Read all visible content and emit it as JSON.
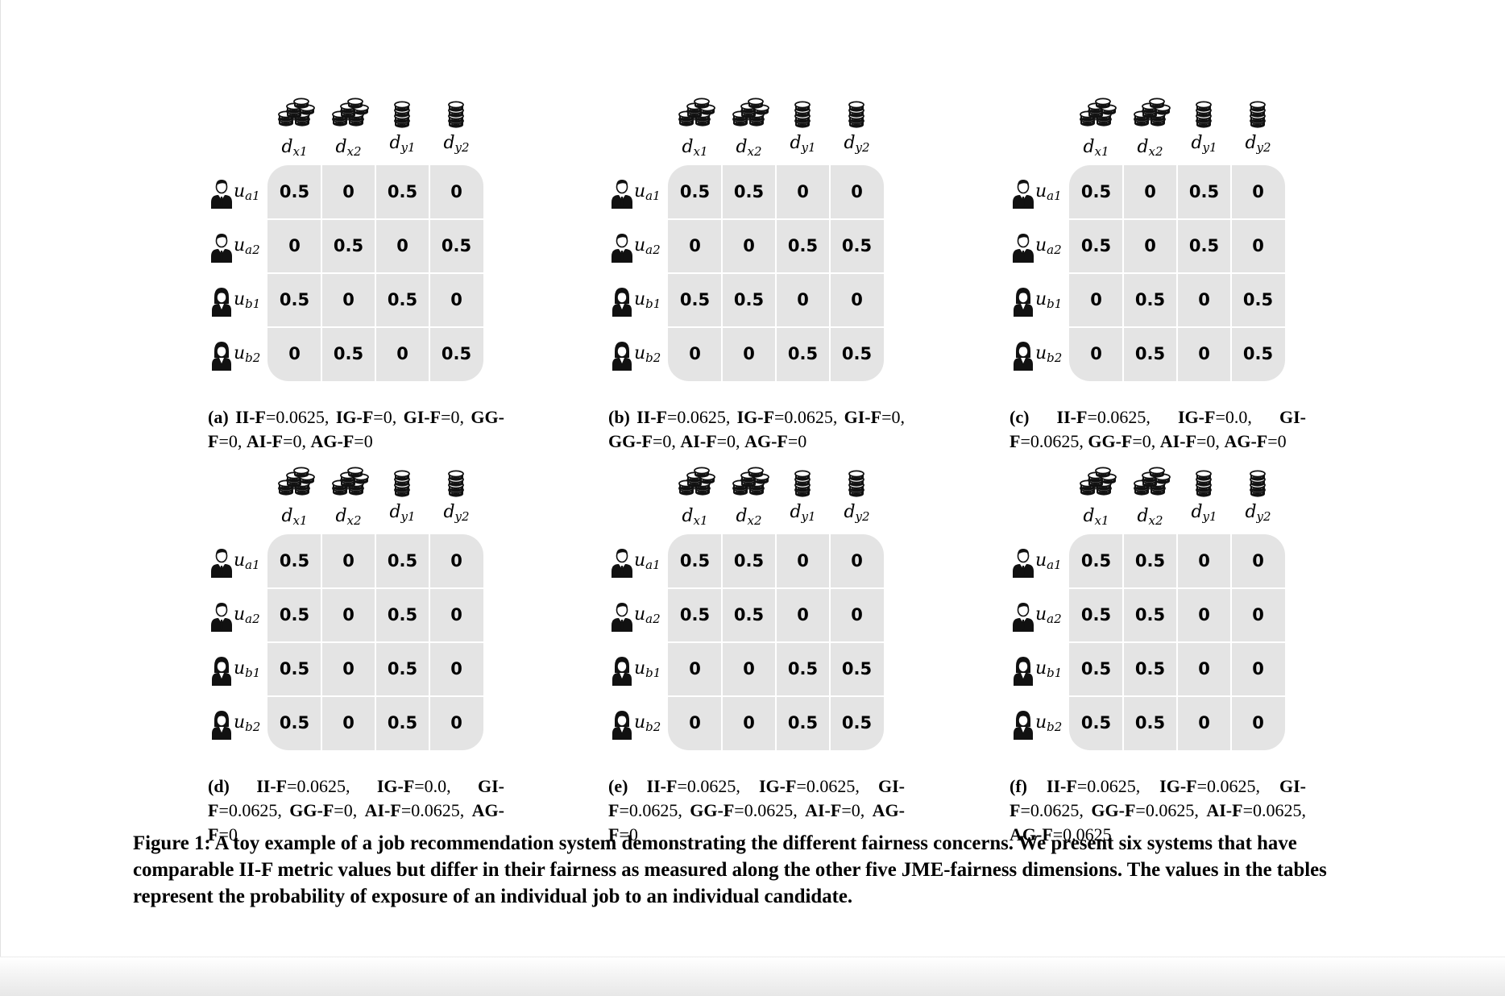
{
  "col_headers": [
    {
      "base": "d",
      "sub": "x1",
      "icon": "coin-stack-large-icon"
    },
    {
      "base": "d",
      "sub": "x2",
      "icon": "coin-stack-large-icon"
    },
    {
      "base": "d",
      "sub": "y1",
      "icon": "coin-stack-small-icon"
    },
    {
      "base": "d",
      "sub": "y2",
      "icon": "coin-stack-small-icon"
    }
  ],
  "row_headers": [
    {
      "base": "u",
      "sub": "a1",
      "icon": "male-candidate-icon"
    },
    {
      "base": "u",
      "sub": "a2",
      "icon": "male-candidate-icon"
    },
    {
      "base": "u",
      "sub": "b1",
      "icon": "female-candidate-icon"
    },
    {
      "base": "u",
      "sub": "b2",
      "icon": "female-candidate-icon"
    }
  ],
  "panels": [
    {
      "caption": [
        {
          "t": "(a) II-F",
          "b": true
        },
        {
          "t": "=0.0625, "
        },
        {
          "t": "IG-F",
          "b": true
        },
        {
          "t": "=0, "
        },
        {
          "t": "GI-F",
          "b": true
        },
        {
          "t": "=0, "
        },
        {
          "t": "GG-F",
          "b": true
        },
        {
          "t": "=0, "
        },
        {
          "t": "AI-F",
          "b": true
        },
        {
          "t": "=0, "
        },
        {
          "t": "AG-F",
          "b": true
        },
        {
          "t": "=0"
        }
      ],
      "table": [
        [
          "0.5",
          "0",
          "0.5",
          "0"
        ],
        [
          "0",
          "0.5",
          "0",
          "0.5"
        ],
        [
          "0.5",
          "0",
          "0.5",
          "0"
        ],
        [
          "0",
          "0.5",
          "0",
          "0.5"
        ]
      ]
    },
    {
      "caption": [
        {
          "t": "(b) II-F",
          "b": true
        },
        {
          "t": "=0.0625, "
        },
        {
          "t": "IG-F",
          "b": true
        },
        {
          "t": "=0.0625, "
        },
        {
          "t": "GI-F",
          "b": true
        },
        {
          "t": "=0, "
        },
        {
          "t": "GG-F",
          "b": true
        },
        {
          "t": "=0, "
        },
        {
          "t": "AI-F",
          "b": true
        },
        {
          "t": "=0, "
        },
        {
          "t": "AG-F",
          "b": true
        },
        {
          "t": "=0"
        }
      ],
      "table": [
        [
          "0.5",
          "0.5",
          "0",
          "0"
        ],
        [
          "0",
          "0",
          "0.5",
          "0.5"
        ],
        [
          "0.5",
          "0.5",
          "0",
          "0"
        ],
        [
          "0",
          "0",
          "0.5",
          "0.5"
        ]
      ]
    },
    {
      "caption": [
        {
          "t": "(c) II-F",
          "b": true
        },
        {
          "t": "=0.0625, "
        },
        {
          "t": "IG-F",
          "b": true
        },
        {
          "t": "=0.0, "
        },
        {
          "t": "GI-F",
          "b": true
        },
        {
          "t": "=0.0625, "
        },
        {
          "t": "GG-F",
          "b": true
        },
        {
          "t": "=0, "
        },
        {
          "t": "AI-F",
          "b": true
        },
        {
          "t": "=0, "
        },
        {
          "t": "AG-F",
          "b": true
        },
        {
          "t": "=0"
        }
      ],
      "table": [
        [
          "0.5",
          "0",
          "0.5",
          "0"
        ],
        [
          "0.5",
          "0",
          "0.5",
          "0"
        ],
        [
          "0",
          "0.5",
          "0",
          "0.5"
        ],
        [
          "0",
          "0.5",
          "0",
          "0.5"
        ]
      ]
    },
    {
      "caption": [
        {
          "t": "(d) II-F",
          "b": true
        },
        {
          "t": "=0.0625, "
        },
        {
          "t": "IG-F",
          "b": true
        },
        {
          "t": "=0.0, "
        },
        {
          "t": "GI-F",
          "b": true
        },
        {
          "t": "=0.0625, "
        },
        {
          "t": "GG-F",
          "b": true
        },
        {
          "t": "=0, "
        },
        {
          "t": "AI-F",
          "b": true
        },
        {
          "t": "=0.0625, "
        },
        {
          "t": "AG-F",
          "b": true
        },
        {
          "t": "=0"
        }
      ],
      "table": [
        [
          "0.5",
          "0",
          "0.5",
          "0"
        ],
        [
          "0.5",
          "0",
          "0.5",
          "0"
        ],
        [
          "0.5",
          "0",
          "0.5",
          "0"
        ],
        [
          "0.5",
          "0",
          "0.5",
          "0"
        ]
      ]
    },
    {
      "caption": [
        {
          "t": "(e) II-F",
          "b": true
        },
        {
          "t": "=0.0625, "
        },
        {
          "t": "IG-F",
          "b": true
        },
        {
          "t": "=0.0625, "
        },
        {
          "t": "GI-F",
          "b": true
        },
        {
          "t": "=0.0625, "
        },
        {
          "t": "GG-F",
          "b": true
        },
        {
          "t": "=0.0625, "
        },
        {
          "t": "AI-F",
          "b": true
        },
        {
          "t": "=0, "
        },
        {
          "t": "AG-F",
          "b": true
        },
        {
          "t": "=0"
        }
      ],
      "table": [
        [
          "0.5",
          "0.5",
          "0",
          "0"
        ],
        [
          "0.5",
          "0.5",
          "0",
          "0"
        ],
        [
          "0",
          "0",
          "0.5",
          "0.5"
        ],
        [
          "0",
          "0",
          "0.5",
          "0.5"
        ]
      ]
    },
    {
      "caption": [
        {
          "t": "(f) II-F",
          "b": true
        },
        {
          "t": "=0.0625, "
        },
        {
          "t": "IG-F",
          "b": true
        },
        {
          "t": "=0.0625, "
        },
        {
          "t": "GI-F",
          "b": true
        },
        {
          "t": "=0.0625, "
        },
        {
          "t": "GG-F",
          "b": true
        },
        {
          "t": "=0.0625, "
        },
        {
          "t": "AI-F",
          "b": true
        },
        {
          "t": "=0.0625, "
        },
        {
          "t": "AG-F",
          "b": true
        },
        {
          "t": "=0.0625"
        }
      ],
      "table": [
        [
          "0.5",
          "0.5",
          "0",
          "0"
        ],
        [
          "0.5",
          "0.5",
          "0",
          "0"
        ],
        [
          "0.5",
          "0.5",
          "0",
          "0"
        ],
        [
          "0.5",
          "0.5",
          "0",
          "0"
        ]
      ]
    }
  ],
  "figure_caption": "Figure 1: A toy example of a job recommendation system demonstrating the different fairness concerns. We present six systems that have comparable II-F metric values but differ in their fairness as measured along the other five JME-fairness dimensions. The values in the tables represent the probability of exposure of an individual job to an individual candidate."
}
